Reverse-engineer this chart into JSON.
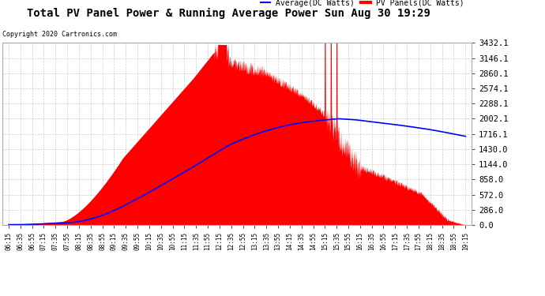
{
  "title": "Total PV Panel Power & Running Average Power Sun Aug 30 19:29",
  "copyright": "Copyright 2020 Cartronics.com",
  "legend_avg": "Average(DC Watts)",
  "legend_pv": "PV Panels(DC Watts)",
  "yticks": [
    0.0,
    286.0,
    572.0,
    858.0,
    1144.0,
    1430.0,
    1716.1,
    2002.1,
    2288.1,
    2574.1,
    2860.1,
    3146.1,
    3432.1
  ],
  "ymax": 3432.1,
  "ymin": 0.0,
  "bg_color": "#ffffff",
  "grid_color": "#cccccc",
  "pv_color": "#ff0000",
  "avg_color": "#0000ff",
  "title_color": "#000000",
  "copyright_color": "#000000",
  "legend_avg_color": "#0000ff",
  "legend_pv_color": "#ff0000",
  "xtick_labels": [
    "06:15",
    "06:35",
    "06:55",
    "07:15",
    "07:35",
    "07:55",
    "08:15",
    "08:35",
    "08:55",
    "09:15",
    "09:35",
    "09:55",
    "10:15",
    "10:35",
    "10:55",
    "11:15",
    "11:35",
    "11:55",
    "12:15",
    "12:35",
    "12:55",
    "13:15",
    "13:35",
    "13:55",
    "14:15",
    "14:35",
    "14:55",
    "15:15",
    "15:35",
    "15:55",
    "16:15",
    "16:35",
    "16:55",
    "17:15",
    "17:35",
    "17:55",
    "18:15",
    "18:35",
    "18:55",
    "19:15"
  ]
}
